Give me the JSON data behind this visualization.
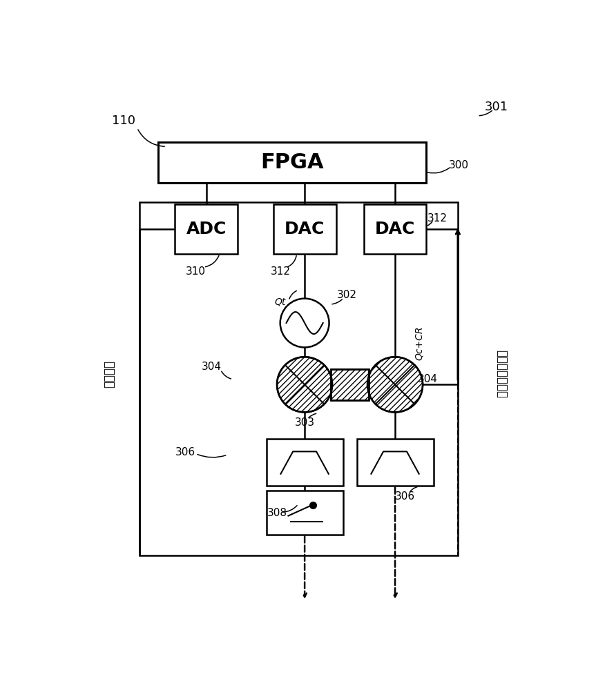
{
  "bg_color": "#ffffff",
  "lc": "#000000",
  "fig_w": 8.63,
  "fig_h": 10.0,
  "fpga_label": "FPGA",
  "adc_label": "ADC",
  "dac_label": "DAC",
  "label_110": "110",
  "label_301": "301",
  "label_300": "300",
  "label_310": "310",
  "label_312a": "312",
  "label_312b": "312",
  "label_302": "302",
  "label_304a": "304",
  "label_304b": "304",
  "label_303": "303",
  "label_306a": "306",
  "label_306b": "306",
  "label_308": "308",
  "label_Qt": "Qt",
  "label_QcCR": "Qc+CR",
  "label_logic": "逻辑输出",
  "label_downconv": "降频转换器输出"
}
